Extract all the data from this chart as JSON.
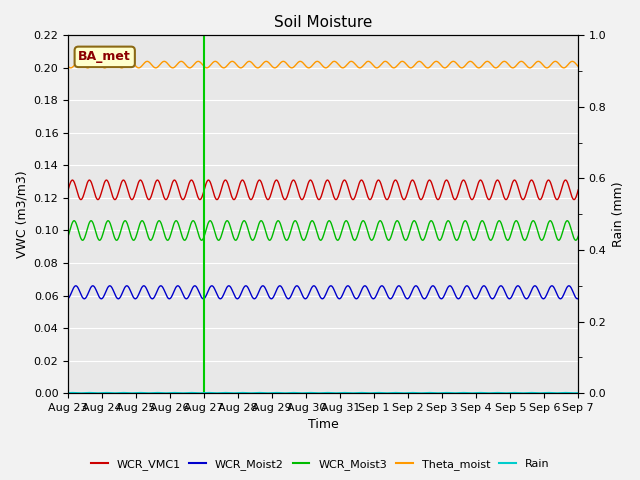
{
  "title": "Soil Moisture",
  "xlabel": "Time",
  "ylabel_left": "VWC (m3/m3)",
  "ylabel_right": "Rain (mm)",
  "ylim_left": [
    0.0,
    0.22
  ],
  "ylim_right": [
    0.0,
    1.0
  ],
  "yticks_left": [
    0.0,
    0.02,
    0.04,
    0.06,
    0.08,
    0.1,
    0.12,
    0.14,
    0.16,
    0.18,
    0.2,
    0.22
  ],
  "yticks_right_major": [
    0.0,
    0.2,
    0.4,
    0.6,
    0.8,
    1.0
  ],
  "yticks_right_minor": [
    0.1,
    0.3,
    0.5,
    0.7,
    0.9
  ],
  "xtick_labels": [
    "Aug 23",
    "Aug 24",
    "Aug 25",
    "Aug 26",
    "Aug 27",
    "Aug 28",
    "Aug 29",
    "Aug 30",
    "Aug 31",
    "Sep 1",
    "Sep 2",
    "Sep 3",
    "Sep 4",
    "Sep 5",
    "Sep 6",
    "Sep 7"
  ],
  "n_days": 15,
  "annotation_label": "BA_met",
  "vline_x_index": 4,
  "series": {
    "WCR_VMC1": {
      "color": "#cc0000",
      "base": 0.125,
      "amplitude": 0.006,
      "freq_per_day": 2.0,
      "phase": 0.0
    },
    "WCR_Moist2": {
      "color": "#0000cc",
      "base": 0.062,
      "amplitude": 0.004,
      "freq_per_day": 2.0,
      "phase": 0.2
    },
    "WCR_Moist3": {
      "color": "#00bb00",
      "base": 0.1,
      "amplitude": 0.006,
      "freq_per_day": 2.0,
      "phase": 0.1
    },
    "Theta_moist": {
      "color": "#ff9900",
      "base": 0.202,
      "amplitude": 0.002,
      "freq_per_day": 2.0,
      "phase": 0.4
    },
    "Rain": {
      "color": "#00cccc",
      "base": 0.001,
      "amplitude": 0.0005,
      "freq_per_day": 2.0,
      "phase": 0.0
    }
  },
  "fig_facecolor": "#f2f2f2",
  "ax_facecolor": "#e8e8e8",
  "grid_color": "#ffffff",
  "title_fontsize": 11,
  "axis_fontsize": 9,
  "tick_fontsize": 8,
  "legend_fontsize": 8
}
